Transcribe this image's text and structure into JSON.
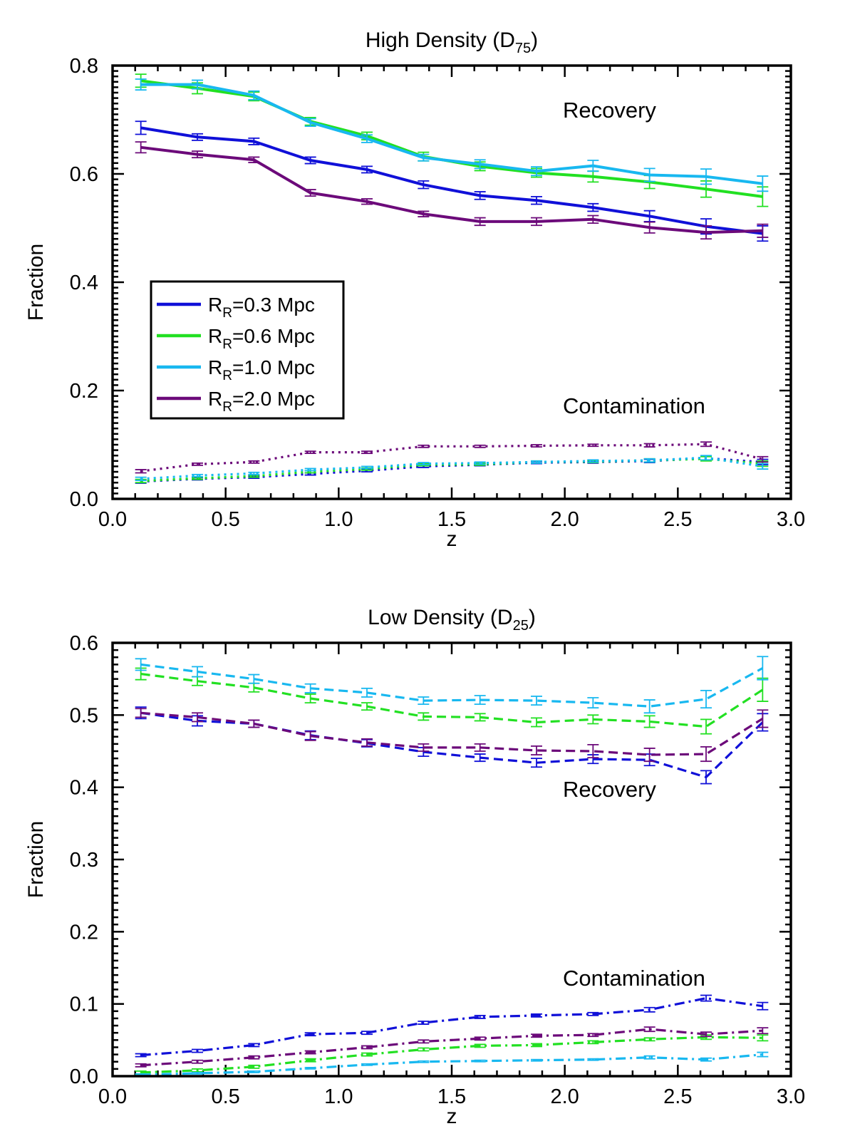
{
  "chart_data": [
    {
      "type": "line",
      "title": "High Density (D",
      "title_sub": "75",
      "title_end": ")",
      "xlabel": "z",
      "ylabel": "Fraction",
      "xlim": [
        0.0,
        3.0
      ],
      "ylim": [
        0.0,
        0.8
      ],
      "xticks": [
        "0.0",
        "0.5",
        "1.0",
        "1.5",
        "2.0",
        "2.5",
        "3.0"
      ],
      "yticks": [
        "0.0",
        "0.2",
        "0.4",
        "0.6",
        "0.8"
      ],
      "x": [
        0.125,
        0.375,
        0.625,
        0.875,
        1.125,
        1.375,
        1.625,
        1.875,
        2.125,
        2.375,
        2.625,
        2.875
      ],
      "annotations": [
        "Recovery",
        "Contamination"
      ],
      "legend": {
        "position": "middle-left",
        "entries": [
          {
            "prefix": "R",
            "sub": "R",
            "text": "=0.3 Mpc",
            "color": "#1010d8"
          },
          {
            "prefix": "R",
            "sub": "R",
            "text": "=0.6 Mpc",
            "color": "#22e022"
          },
          {
            "prefix": "R",
            "sub": "R",
            "text": "=1.0 Mpc",
            "color": "#18b8f0"
          },
          {
            "prefix": "R",
            "sub": "R",
            "text": "=2.0 Mpc",
            "color": "#6c0a7a"
          }
        ]
      },
      "series": [
        {
          "name": "R_R=0.3 Mpc recovery",
          "color": "#1010d8",
          "style": "solid",
          "values": [
            0.685,
            0.668,
            0.66,
            0.625,
            0.608,
            0.58,
            0.56,
            0.551,
            0.538,
            0.522,
            0.503,
            0.49
          ],
          "errors": [
            0.012,
            0.006,
            0.006,
            0.006,
            0.006,
            0.007,
            0.007,
            0.007,
            0.007,
            0.01,
            0.014,
            0.014
          ]
        },
        {
          "name": "R_R=0.6 Mpc recovery",
          "color": "#22e022",
          "style": "solid",
          "values": [
            0.772,
            0.758,
            0.743,
            0.697,
            0.67,
            0.632,
            0.614,
            0.602,
            0.595,
            0.585,
            0.572,
            0.558
          ],
          "errors": [
            0.012,
            0.01,
            0.008,
            0.007,
            0.007,
            0.008,
            0.008,
            0.008,
            0.01,
            0.012,
            0.015,
            0.018
          ]
        },
        {
          "name": "R_R=1.0 Mpc recovery",
          "color": "#18b8f0",
          "style": "solid",
          "values": [
            0.765,
            0.765,
            0.745,
            0.695,
            0.665,
            0.63,
            0.618,
            0.605,
            0.615,
            0.598,
            0.595,
            0.582
          ],
          "errors": [
            0.01,
            0.008,
            0.008,
            0.007,
            0.007,
            0.006,
            0.008,
            0.008,
            0.01,
            0.012,
            0.014,
            0.014
          ]
        },
        {
          "name": "R_R=2.0 Mpc recovery",
          "color": "#6c0a7a",
          "style": "solid",
          "values": [
            0.649,
            0.636,
            0.626,
            0.565,
            0.549,
            0.526,
            0.512,
            0.512,
            0.516,
            0.501,
            0.492,
            0.495
          ],
          "errors": [
            0.01,
            0.006,
            0.005,
            0.006,
            0.005,
            0.005,
            0.007,
            0.007,
            0.007,
            0.01,
            0.012,
            0.012
          ]
        },
        {
          "name": "R_R=0.3 Mpc contamination",
          "color": "#1010d8",
          "style": "dotted",
          "values": [
            0.032,
            0.037,
            0.04,
            0.046,
            0.052,
            0.06,
            0.063,
            0.067,
            0.068,
            0.07,
            0.075,
            0.068
          ],
          "errors": [
            0.003,
            0.002,
            0.002,
            0.002,
            0.002,
            0.002,
            0.002,
            0.002,
            0.002,
            0.003,
            0.004,
            0.005
          ]
        },
        {
          "name": "R_R=0.6 Mpc contamination",
          "color": "#22e022",
          "style": "dotted",
          "values": [
            0.033,
            0.038,
            0.042,
            0.05,
            0.055,
            0.063,
            0.064,
            0.068,
            0.069,
            0.071,
            0.074,
            0.065
          ],
          "errors": [
            0.003,
            0.002,
            0.002,
            0.002,
            0.002,
            0.002,
            0.002,
            0.002,
            0.002,
            0.003,
            0.004,
            0.005
          ]
        },
        {
          "name": "R_R=1.0 Mpc contamination",
          "color": "#18b8f0",
          "style": "dotted",
          "values": [
            0.037,
            0.043,
            0.047,
            0.054,
            0.058,
            0.065,
            0.066,
            0.068,
            0.07,
            0.071,
            0.076,
            0.06
          ],
          "errors": [
            0.003,
            0.002,
            0.002,
            0.002,
            0.002,
            0.002,
            0.002,
            0.002,
            0.002,
            0.003,
            0.004,
            0.005
          ]
        },
        {
          "name": "R_R=2.0 Mpc contamination",
          "color": "#6c0a7a",
          "style": "dotted",
          "values": [
            0.051,
            0.064,
            0.068,
            0.086,
            0.086,
            0.097,
            0.097,
            0.098,
            0.099,
            0.099,
            0.101,
            0.073
          ],
          "errors": [
            0.003,
            0.002,
            0.002,
            0.002,
            0.002,
            0.002,
            0.002,
            0.002,
            0.002,
            0.003,
            0.004,
            0.005
          ]
        }
      ]
    },
    {
      "type": "line",
      "title": "Low Density (D",
      "title_sub": "25",
      "title_end": ")",
      "xlabel": "z",
      "ylabel": "Fraction",
      "xlim": [
        0.0,
        3.0
      ],
      "ylim": [
        0.0,
        0.6
      ],
      "xticks": [
        "0.0",
        "0.5",
        "1.0",
        "1.5",
        "2.0",
        "2.5",
        "3.0"
      ],
      "yticks": [
        "0.0",
        "0.1",
        "0.2",
        "0.3",
        "0.4",
        "0.5",
        "0.6"
      ],
      "x": [
        0.125,
        0.375,
        0.625,
        0.875,
        1.125,
        1.375,
        1.625,
        1.875,
        2.125,
        2.375,
        2.625,
        2.875
      ],
      "annotations": [
        "Recovery",
        "Contamination"
      ],
      "series": [
        {
          "name": "R_R=0.3 Mpc recovery",
          "color": "#1010d8",
          "style": "dashed",
          "values": [
            0.503,
            0.492,
            0.488,
            0.472,
            0.461,
            0.449,
            0.441,
            0.434,
            0.439,
            0.438,
            0.414,
            0.49
          ],
          "errors": [
            0.008,
            0.007,
            0.005,
            0.006,
            0.005,
            0.006,
            0.005,
            0.006,
            0.006,
            0.008,
            0.009,
            0.012
          ]
        },
        {
          "name": "R_R=0.6 Mpc recovery",
          "color": "#22e022",
          "style": "dashed",
          "values": [
            0.557,
            0.547,
            0.538,
            0.523,
            0.512,
            0.498,
            0.497,
            0.49,
            0.494,
            0.491,
            0.484,
            0.535
          ],
          "errors": [
            0.008,
            0.006,
            0.006,
            0.006,
            0.005,
            0.005,
            0.005,
            0.006,
            0.006,
            0.008,
            0.01,
            0.016
          ]
        },
        {
          "name": "R_R=1.0 Mpc recovery",
          "color": "#18b8f0",
          "style": "dashed",
          "values": [
            0.57,
            0.56,
            0.55,
            0.537,
            0.531,
            0.52,
            0.521,
            0.52,
            0.517,
            0.512,
            0.522,
            0.565
          ],
          "errors": [
            0.008,
            0.007,
            0.006,
            0.006,
            0.006,
            0.005,
            0.006,
            0.006,
            0.007,
            0.009,
            0.012,
            0.016
          ]
        },
        {
          "name": "R_R=2.0 Mpc recovery",
          "color": "#6c0a7a",
          "style": "dashed",
          "values": [
            0.503,
            0.497,
            0.488,
            0.471,
            0.462,
            0.455,
            0.455,
            0.451,
            0.45,
            0.445,
            0.446,
            0.495
          ],
          "errors": [
            0.006,
            0.006,
            0.005,
            0.006,
            0.005,
            0.005,
            0.005,
            0.006,
            0.009,
            0.009,
            0.01,
            0.012
          ]
        },
        {
          "name": "R_R=0.3 Mpc contamination",
          "color": "#1010d8",
          "style": "dashdot",
          "values": [
            0.029,
            0.035,
            0.043,
            0.058,
            0.06,
            0.074,
            0.082,
            0.084,
            0.086,
            0.092,
            0.108,
            0.097
          ],
          "errors": [
            0.002,
            0.002,
            0.002,
            0.002,
            0.002,
            0.002,
            0.002,
            0.002,
            0.002,
            0.003,
            0.004,
            0.005
          ]
        },
        {
          "name": "R_R=0.6 Mpc contamination",
          "color": "#22e022",
          "style": "dashdot",
          "values": [
            0.005,
            0.008,
            0.013,
            0.022,
            0.03,
            0.037,
            0.042,
            0.043,
            0.047,
            0.051,
            0.054,
            0.053
          ],
          "errors": [
            0.002,
            0.002,
            0.002,
            0.002,
            0.002,
            0.002,
            0.002,
            0.002,
            0.002,
            0.002,
            0.003,
            0.004
          ]
        },
        {
          "name": "R_R=1.0 Mpc contamination",
          "color": "#18b8f0",
          "style": "dashdot",
          "values": [
            0.002,
            0.004,
            0.006,
            0.011,
            0.016,
            0.02,
            0.021,
            0.022,
            0.023,
            0.026,
            0.023,
            0.03
          ],
          "errors": [
            0.001,
            0.001,
            0.001,
            0.001,
            0.001,
            0.001,
            0.001,
            0.001,
            0.001,
            0.002,
            0.002,
            0.003
          ]
        },
        {
          "name": "R_R=2.0 Mpc contamination",
          "color": "#6c0a7a",
          "style": "dashdot",
          "values": [
            0.015,
            0.02,
            0.026,
            0.033,
            0.04,
            0.048,
            0.052,
            0.056,
            0.057,
            0.065,
            0.058,
            0.063
          ],
          "errors": [
            0.002,
            0.002,
            0.002,
            0.002,
            0.002,
            0.002,
            0.002,
            0.002,
            0.002,
            0.003,
            0.003,
            0.004
          ]
        }
      ]
    }
  ]
}
